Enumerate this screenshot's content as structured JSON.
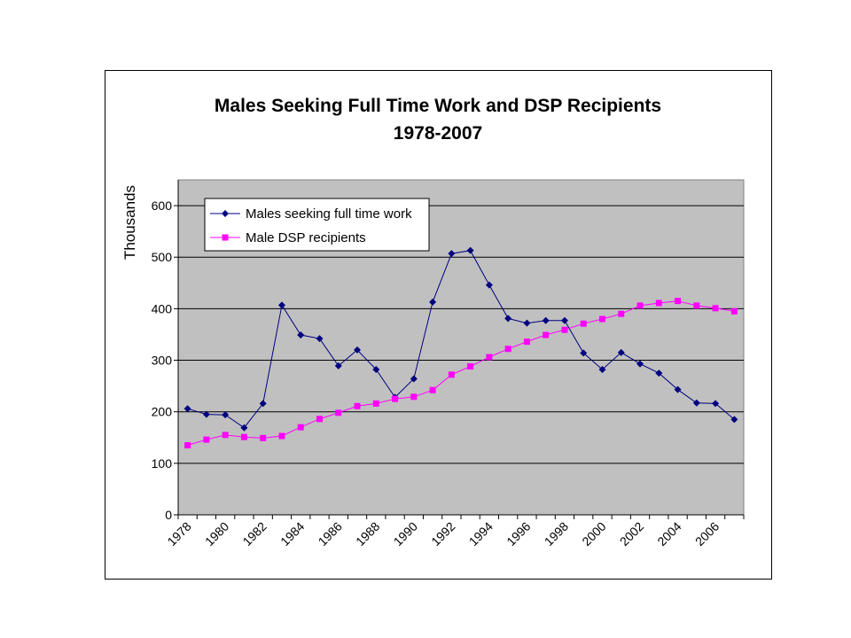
{
  "chart_data": {
    "type": "line",
    "title": "Males Seeking Full Time Work and DSP Recipients",
    "subtitle": "1978-2007",
    "xlabel": "",
    "ylabel": "Thousands",
    "ylim": [
      0,
      650
    ],
    "yticks": [
      0,
      100,
      200,
      300,
      400,
      500,
      600
    ],
    "x": [
      1978,
      1979,
      1980,
      1981,
      1982,
      1983,
      1984,
      1985,
      1986,
      1987,
      1988,
      1989,
      1990,
      1991,
      1992,
      1993,
      1994,
      1995,
      1996,
      1997,
      1998,
      1999,
      2000,
      2001,
      2002,
      2003,
      2004,
      2005,
      2006,
      2007
    ],
    "xtick_labels": [
      "1978",
      "1980",
      "1982",
      "1984",
      "1986",
      "1988",
      "1990",
      "1992",
      "1994",
      "1996",
      "1998",
      "2000",
      "2002",
      "2004",
      "2006"
    ],
    "grid": true,
    "legend_position": "top-left",
    "plot_background": "#c0c0c0",
    "series": [
      {
        "name": "Males seeking full time work",
        "color": "#000080",
        "marker": "diamond",
        "values": [
          206,
          195,
          194,
          169,
          216,
          407,
          349,
          342,
          289,
          320,
          282,
          228,
          264,
          413,
          507,
          513,
          446,
          381,
          372,
          377,
          377,
          314,
          282,
          315,
          293,
          275,
          243,
          217,
          216,
          185
        ]
      },
      {
        "name": "Male DSP recipients",
        "color": "#ff00ff",
        "marker": "square",
        "values": [
          135,
          146,
          155,
          151,
          149,
          153,
          170,
          186,
          198,
          211,
          216,
          225,
          229,
          242,
          272,
          288,
          306,
          322,
          336,
          349,
          359,
          371,
          380,
          390,
          406,
          411,
          415,
          406,
          401,
          395
        ]
      }
    ]
  }
}
